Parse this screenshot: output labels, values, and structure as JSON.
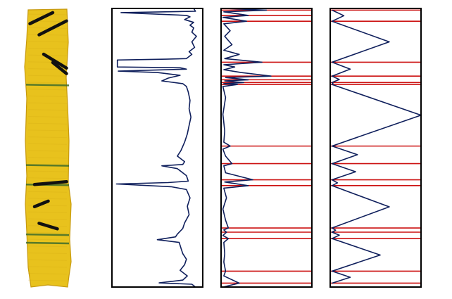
{
  "colors": {
    "signal": "#0f1f5c",
    "segment_boundary": "#cc1111",
    "frame": "#000000",
    "core_yellow": "#e8c21d",
    "core_shadow": "#c79a10",
    "core_mark": "#111111",
    "core_band": "#3f6d2a"
  },
  "chart_data": [
    {
      "type": "image",
      "name": "core-sample",
      "depth_range": [
        0,
        100
      ],
      "bands": [
        27,
        56,
        63,
        81,
        84
      ],
      "strokes": [
        [
          [
            1,
            5
          ],
          [
            6,
            1
          ]
        ],
        [
          [
            3,
            9
          ],
          [
            9,
            4
          ]
        ],
        [
          [
            4,
            16
          ],
          [
            9,
            21
          ]
        ],
        [
          [
            6,
            19
          ],
          [
            9,
            23
          ]
        ],
        [
          [
            2,
            63
          ],
          [
            9,
            62
          ]
        ],
        [
          [
            2,
            71
          ],
          [
            5,
            69
          ]
        ],
        [
          [
            3,
            77
          ],
          [
            7,
            79
          ]
        ]
      ]
    },
    {
      "type": "line",
      "name": "intensity-profile",
      "orientation": "vertical",
      "xlim": [
        0,
        1
      ],
      "ylim": [
        0,
        100
      ],
      "grid": false,
      "points": [
        [
          0.9,
          0
        ],
        [
          0.92,
          1
        ],
        [
          0.1,
          1.5
        ],
        [
          0.82,
          2.5
        ],
        [
          0.86,
          3
        ],
        [
          0.8,
          4
        ],
        [
          0.9,
          5
        ],
        [
          0.86,
          6
        ],
        [
          0.9,
          7
        ],
        [
          0.88,
          8.5
        ],
        [
          0.93,
          10
        ],
        [
          0.88,
          12
        ],
        [
          0.91,
          14
        ],
        [
          0.85,
          15.5
        ],
        [
          0.88,
          16.5
        ],
        [
          0.82,
          18
        ],
        [
          0.6,
          18.2
        ],
        [
          0.06,
          18.5
        ],
        [
          0.06,
          21
        ],
        [
          0.75,
          21.3
        ],
        [
          0.82,
          21.8
        ],
        [
          0.07,
          22.5
        ],
        [
          0.5,
          23
        ],
        [
          0.75,
          24
        ],
        [
          0.62,
          25
        ],
        [
          0.55,
          26
        ],
        [
          0.78,
          27
        ],
        [
          0.82,
          28
        ],
        [
          0.84,
          30
        ],
        [
          0.86,
          33
        ],
        [
          0.85,
          36
        ],
        [
          0.87,
          39
        ],
        [
          0.85,
          42
        ],
        [
          0.83,
          45
        ],
        [
          0.8,
          48
        ],
        [
          0.76,
          51
        ],
        [
          0.72,
          53
        ],
        [
          0.8,
          55
        ],
        [
          0.78,
          56
        ],
        [
          0.55,
          56.5
        ],
        [
          0.72,
          57.5
        ],
        [
          0.82,
          60
        ],
        [
          0.84,
          62
        ],
        [
          0.62,
          62.5
        ],
        [
          0.05,
          63
        ],
        [
          0.65,
          64
        ],
        [
          0.82,
          65
        ],
        [
          0.86,
          68
        ],
        [
          0.83,
          71
        ],
        [
          0.85,
          74
        ],
        [
          0.8,
          77
        ],
        [
          0.78,
          79
        ],
        [
          0.72,
          81
        ],
        [
          0.7,
          82
        ],
        [
          0.5,
          83
        ],
        [
          0.74,
          84
        ],
        [
          0.76,
          86
        ],
        [
          0.78,
          88
        ],
        [
          0.82,
          90
        ],
        [
          0.8,
          92
        ],
        [
          0.75,
          94
        ],
        [
          0.83,
          96
        ],
        [
          0.78,
          97.5
        ],
        [
          0.52,
          98.5
        ],
        [
          0.88,
          99
        ],
        [
          0.92,
          100
        ]
      ]
    },
    {
      "type": "line",
      "name": "derivative-profile",
      "orientation": "vertical",
      "xlim": [
        0,
        1
      ],
      "ylim": [
        0,
        100
      ],
      "grid": false,
      "boundaries": [
        0.6,
        2.5,
        4.6,
        19.3,
        24.3,
        25.6,
        26.6,
        27.3,
        49.4,
        55.7,
        61.5,
        63.6,
        78.8,
        80.3,
        82.6,
        94.3,
        98.6
      ],
      "points": [
        [
          0.04,
          0
        ],
        [
          0.5,
          0.6
        ],
        [
          0.03,
          1.2
        ],
        [
          0.3,
          2.5
        ],
        [
          0.02,
          3.2
        ],
        [
          0.28,
          4.6
        ],
        [
          0.03,
          5.5
        ],
        [
          0.1,
          8
        ],
        [
          0.04,
          10
        ],
        [
          0.12,
          13
        ],
        [
          0.03,
          15
        ],
        [
          0.2,
          16.5
        ],
        [
          0.04,
          18
        ],
        [
          0.45,
          19.3
        ],
        [
          0.03,
          20.2
        ],
        [
          0.15,
          21
        ],
        [
          0.03,
          22
        ],
        [
          0.22,
          23
        ],
        [
          0.55,
          24.3
        ],
        [
          0.05,
          24.8
        ],
        [
          0.3,
          25.6
        ],
        [
          0.04,
          26
        ],
        [
          0.25,
          26.6
        ],
        [
          0.03,
          27
        ],
        [
          0.18,
          27.3
        ],
        [
          0.02,
          28
        ],
        [
          0.05,
          32
        ],
        [
          0.02,
          38
        ],
        [
          0.04,
          44
        ],
        [
          0.03,
          48
        ],
        [
          0.1,
          49.4
        ],
        [
          0.02,
          50.5
        ],
        [
          0.05,
          53
        ],
        [
          0.12,
          55.7
        ],
        [
          0.03,
          56.5
        ],
        [
          0.05,
          59
        ],
        [
          0.35,
          61.5
        ],
        [
          0.04,
          62.3
        ],
        [
          0.3,
          63.6
        ],
        [
          0.03,
          64.5
        ],
        [
          0.06,
          68
        ],
        [
          0.02,
          72
        ],
        [
          0.05,
          76
        ],
        [
          0.08,
          78.8
        ],
        [
          0.03,
          79.5
        ],
        [
          0.06,
          80.3
        ],
        [
          0.02,
          81.5
        ],
        [
          0.08,
          82.6
        ],
        [
          0.03,
          84
        ],
        [
          0.04,
          88
        ],
        [
          0.03,
          91
        ],
        [
          0.05,
          94.3
        ],
        [
          0.03,
          96
        ],
        [
          0.2,
          98.6
        ],
        [
          0.02,
          100
        ]
      ]
    },
    {
      "type": "line",
      "name": "segment-thickness",
      "orientation": "vertical",
      "xlim": [
        0,
        1
      ],
      "ylim": [
        0,
        100
      ],
      "grid": false,
      "boundaries": [
        0.6,
        4.6,
        19.3,
        24.3,
        26.6,
        27.3,
        49.4,
        55.7,
        61.5,
        63.6,
        78.8,
        80.3,
        82.6,
        94.3,
        98.6
      ],
      "points": [
        [
          0.02,
          0.6
        ],
        [
          0.15,
          2.6
        ],
        [
          0.02,
          4.6
        ],
        [
          0.65,
          12
        ],
        [
          0.02,
          19.3
        ],
        [
          0.22,
          21.8
        ],
        [
          0.02,
          24.3
        ],
        [
          0.1,
          25.5
        ],
        [
          0.02,
          26.6
        ],
        [
          0.03,
          27
        ],
        [
          0.02,
          27.3
        ],
        [
          1.0,
          38.3
        ],
        [
          0.02,
          49.4
        ],
        [
          0.3,
          52.5
        ],
        [
          0.02,
          55.7
        ],
        [
          0.28,
          58.6
        ],
        [
          0.02,
          61.5
        ],
        [
          0.08,
          62.6
        ],
        [
          0.02,
          63.6
        ],
        [
          0.65,
          71.2
        ],
        [
          0.02,
          78.8
        ],
        [
          0.06,
          79.6
        ],
        [
          0.02,
          80.3
        ],
        [
          0.1,
          81.4
        ],
        [
          0.02,
          82.6
        ],
        [
          0.55,
          88.5
        ],
        [
          0.02,
          94.3
        ],
        [
          0.22,
          96.5
        ],
        [
          0.02,
          98.6
        ]
      ]
    }
  ]
}
